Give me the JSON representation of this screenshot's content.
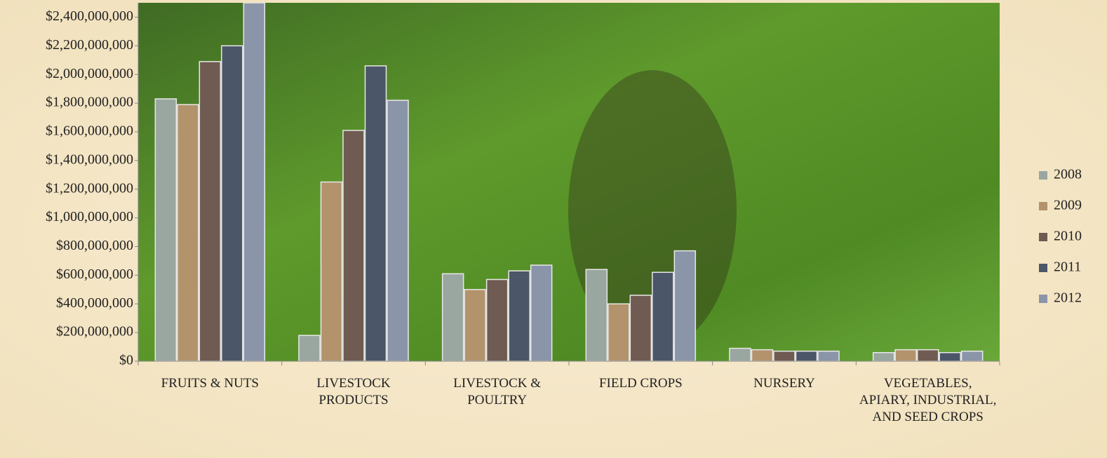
{
  "chart_data": {
    "type": "bar",
    "categories": [
      "FRUITS & NUTS",
      "LIVESTOCK PRODUCTS",
      "LIVESTOCK & POULTRY",
      "FIELD CROPS",
      "NURSERY",
      "VEGETABLES, APIARY, INDUSTRIAL, AND SEED CROPS"
    ],
    "series": [
      {
        "name": "2008",
        "color": "#9aa6a0",
        "values": [
          1830000000,
          180000000,
          610000000,
          640000000,
          90000000,
          60000000
        ]
      },
      {
        "name": "2009",
        "color": "#b3936b",
        "values": [
          1790000000,
          1250000000,
          500000000,
          400000000,
          80000000,
          80000000
        ]
      },
      {
        "name": "2010",
        "color": "#6f5b51",
        "values": [
          2090000000,
          1610000000,
          570000000,
          460000000,
          70000000,
          80000000
        ]
      },
      {
        "name": "2011",
        "color": "#4b5668",
        "values": [
          2200000000,
          2060000000,
          630000000,
          620000000,
          70000000,
          60000000
        ]
      },
      {
        "name": "2012",
        "color": "#8b95a9",
        "values": [
          2500000000,
          1820000000,
          670000000,
          770000000,
          70000000,
          70000000
        ]
      }
    ],
    "ylim": [
      0,
      2500000000
    ],
    "yticks": [
      {
        "value": 0,
        "label": "$0"
      },
      {
        "value": 200000000,
        "label": "$200,000,000"
      },
      {
        "value": 400000000,
        "label": "$400,000,000"
      },
      {
        "value": 600000000,
        "label": "$600,000,000"
      },
      {
        "value": 800000000,
        "label": "$800,000,000"
      },
      {
        "value": 1000000000,
        "label": "$1,000,000,000"
      },
      {
        "value": 1200000000,
        "label": "$1,200,000,000"
      },
      {
        "value": 1400000000,
        "label": "$1,400,000,000"
      },
      {
        "value": 1600000000,
        "label": "$1,600,000,000"
      },
      {
        "value": 1800000000,
        "label": "$1,800,000,000"
      },
      {
        "value": 2000000000,
        "label": "$2,000,000,000"
      },
      {
        "value": 2200000000,
        "label": "$2,200,000,000"
      },
      {
        "value": 2400000000,
        "label": "$2,400,000,000"
      }
    ],
    "legend": "right"
  }
}
